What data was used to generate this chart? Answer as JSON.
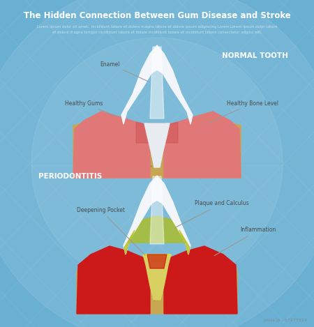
{
  "bg_color": "#5eaad0",
  "bg_gradient_center": "#7ec4dc",
  "title": "The Hidden Connection Between Gum Disease and Stroke",
  "subtitle_line1": "Lorem ipsum dolor sit amet,  incididunt labore et dolore magna labore et dolore ipsum adipiscing Lorem.Lorem ipsum dolor labore",
  "subtitle_line2": "et dolore magna tempor incididunt labore et dolore incididunt labore et incididunt labore consectetur adipisc elit.",
  "title_color": "#ffffff",
  "subtitle_color": "#c8e0ee",
  "normal_label": "NORMAL TOOTH",
  "perio_label": "PERIODONTITIS",
  "divider_color": "#7ab8d0",
  "pixta_text": "pixta.jp - 57277323",
  "pixta_color": "#888888",
  "tooth_white": "#f2f6fa",
  "tooth_highlight": "#ffffff",
  "tooth_shadow": "#dde8f0",
  "bone_color": "#c8a550",
  "bone_dark": "#a8883a",
  "gum_normal_color": "#e07878",
  "gum_normal_inner": "#d05858",
  "gum_red_color": "#cc1a1a",
  "gum_red_dark": "#aa1010",
  "plaque_color": "#b8c820",
  "plaque_light": "#d8e040",
  "root_gap_color": "#cc2020",
  "annotation_color": "#4a4a4a",
  "line_color": "#999999"
}
